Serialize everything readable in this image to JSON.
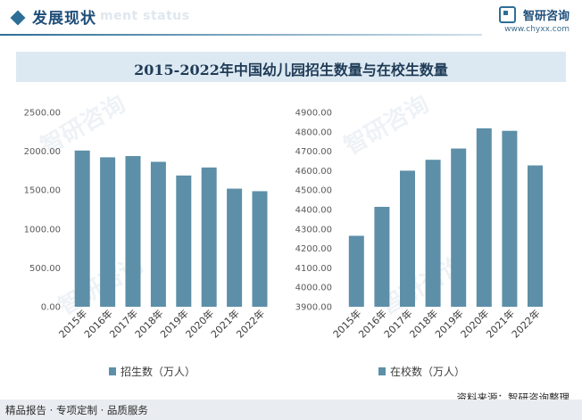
{
  "header": {
    "section_title": "发展现状",
    "section_subtitle": "ment status",
    "brand_name": "智研咨询",
    "brand_url": "www.chyxx.com"
  },
  "chart_title": "2015-2022年中国幼儿园招生数量与在校生数量",
  "footer": {
    "left_text": "精品报告 · 专项定制 · 品质服务",
    "source_text": "资料来源：智研咨询整理"
  },
  "watermark_text": "智研咨询",
  "colors": {
    "bar": "#5d8fa8",
    "accent": "#2d6e96",
    "title_band": "#dde9f2"
  },
  "chart_data": [
    {
      "type": "bar",
      "categories": [
        "2015年",
        "2016年",
        "2017年",
        "2018年",
        "2019年",
        "2020年",
        "2021年",
        "2022年"
      ],
      "series": [
        {
          "name": "招生数（万人）",
          "values": [
            2009,
            1922,
            1938,
            1864,
            1688,
            1791,
            1519,
            1486
          ]
        }
      ],
      "ylim": [
        0,
        2500
      ],
      "yticks": [
        "0.00",
        "500.00",
        "1000.00",
        "1500.00",
        "2000.00",
        "2500.00"
      ],
      "grid": false,
      "legend": "bottom"
    },
    {
      "type": "bar",
      "categories": [
        "2015年",
        "2016年",
        "2017年",
        "2018年",
        "2019年",
        "2020年",
        "2021年",
        "2022年"
      ],
      "series": [
        {
          "name": "在校数（万人）",
          "values": [
            4265,
            4414,
            4600,
            4656,
            4714,
            4818,
            4805,
            4627
          ]
        }
      ],
      "ylim": [
        3900,
        4900
      ],
      "yticks": [
        "3900.00",
        "4000.00",
        "4100.00",
        "4200.00",
        "4300.00",
        "4400.00",
        "4500.00",
        "4600.00",
        "4700.00",
        "4800.00",
        "4900.00"
      ],
      "grid": false,
      "legend": "bottom"
    }
  ]
}
